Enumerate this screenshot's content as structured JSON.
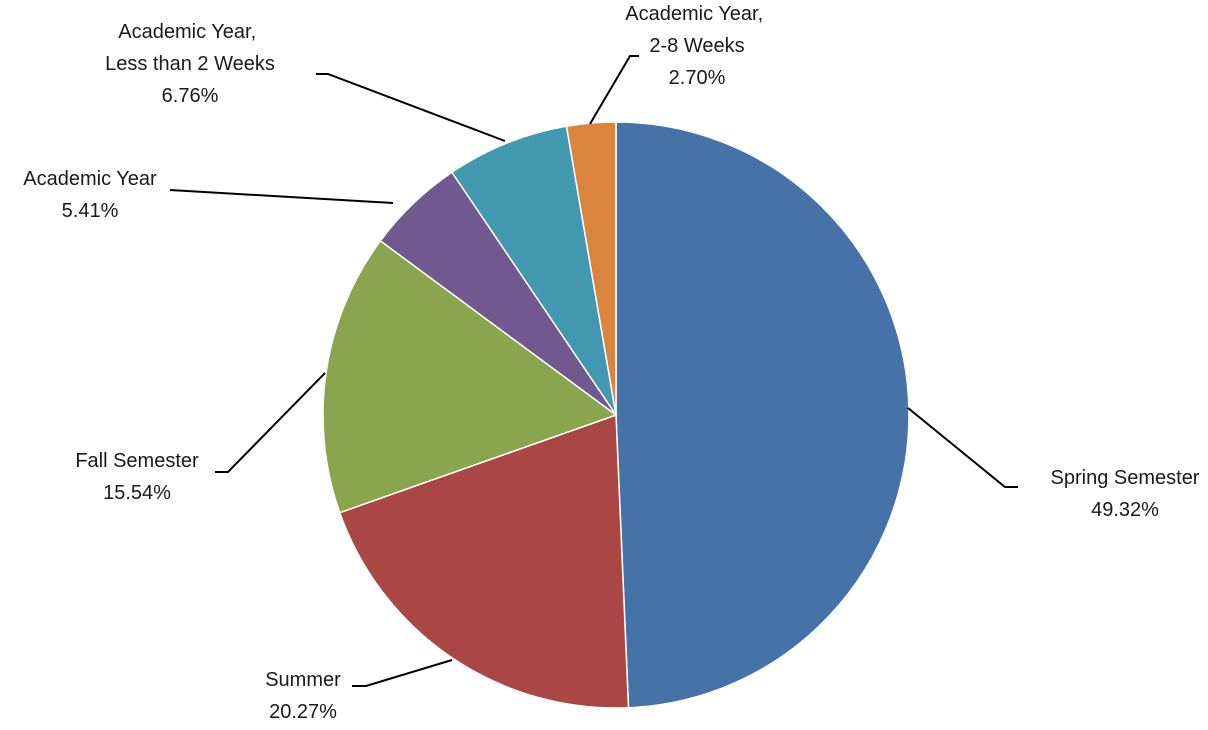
{
  "chart_data": {
    "type": "pie",
    "categories": [
      "Spring Semester",
      "Summer",
      "Fall Semester",
      "Academic Year",
      "Academic Year, Less than 2 Weeks",
      "Academic Year, 2-8 Weeks"
    ],
    "values": [
      49.32,
      20.27,
      15.54,
      5.41,
      6.76,
      2.7
    ],
    "value_labels": [
      "49.32%",
      "20.27%",
      "15.54%",
      "5.41%",
      "6.76%",
      "2.70%"
    ],
    "colors": [
      "#4572a7",
      "#aa4643",
      "#89a54e",
      "#71588f",
      "#4198af",
      "#db843d"
    ]
  }
}
